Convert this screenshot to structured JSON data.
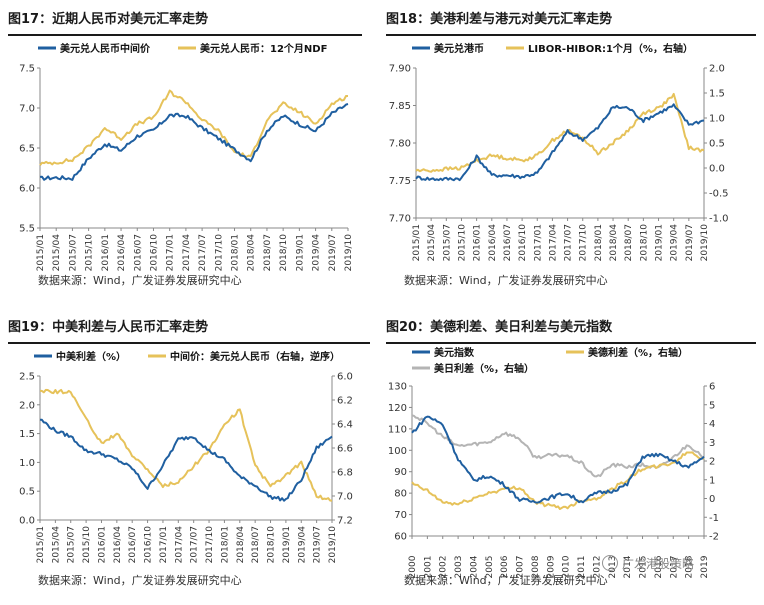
{
  "panels": [
    {
      "title": "图17：近期人民币对美元汇率走势",
      "source": "数据来源：Wind，广发证券发展研究中心"
    },
    {
      "title": "图18：美港利差与港元对美元汇率走势",
      "source": "数据来源：Wind，广发证券发展研究中心"
    },
    {
      "title": "图19：中美利差与人民币汇率走势",
      "source": "数据来源：Wind，广发证券发展研究中心"
    },
    {
      "title": "图20：美德利差、美日利差与美元指数",
      "source": "数据来源：Wind，广发证券发展研究中心"
    }
  ],
  "watermark": "广发港股策略",
  "chart_data": [
    {
      "type": "line",
      "title": "近期人民币对美元汇率走势",
      "categories": [
        "2015/01",
        "2015/04",
        "2015/07",
        "2015/10",
        "2016/01",
        "2016/04",
        "2016/07",
        "2016/10",
        "2017/01",
        "2017/04",
        "2017/07",
        "2017/10",
        "2018/01",
        "2018/04",
        "2018/07",
        "2018/10",
        "2019/01",
        "2019/04",
        "2019/07",
        "2019/10"
      ],
      "ylim": [
        5.5,
        7.5
      ],
      "yticks": [
        "5.5",
        "6.0",
        "6.5",
        "7.0",
        "7.5"
      ],
      "series": [
        {
          "name": "美元兑人民币中间价",
          "color": "#1f5fa0",
          "axis": "left",
          "values": [
            6.12,
            6.13,
            6.12,
            6.37,
            6.55,
            6.47,
            6.65,
            6.72,
            6.91,
            6.9,
            6.75,
            6.62,
            6.48,
            6.35,
            6.72,
            6.9,
            6.8,
            6.71,
            6.93,
            7.05
          ]
        },
        {
          "name": "美元兑人民币：12个月NDF",
          "color": "#e6c25a",
          "axis": "left",
          "values": [
            6.3,
            6.32,
            6.35,
            6.52,
            6.75,
            6.62,
            6.8,
            6.88,
            7.2,
            7.08,
            6.85,
            6.72,
            6.45,
            6.38,
            6.85,
            7.05,
            6.95,
            6.8,
            7.05,
            7.15
          ]
        }
      ]
    },
    {
      "type": "line",
      "title": "美港利差与港元对美元汇率走势",
      "categories": [
        "2015/01",
        "2015/04",
        "2015/07",
        "2015/10",
        "2016/01",
        "2016/04",
        "2016/07",
        "2016/10",
        "2017/01",
        "2017/04",
        "2017/07",
        "2017/10",
        "2018/01",
        "2018/04",
        "2018/07",
        "2018/10",
        "2019/01",
        "2019/04",
        "2019/07",
        "2019/10"
      ],
      "ylim": [
        7.7,
        7.9
      ],
      "yticks": [
        "7.70",
        "7.75",
        "7.80",
        "7.85",
        "7.90"
      ],
      "y2lim": [
        -1.0,
        2.0
      ],
      "y2ticks": [
        "-1.0",
        "-0.5",
        "0.0",
        "0.5",
        "1.0",
        "1.5",
        "2.0"
      ],
      "series": [
        {
          "name": "美元兑港币",
          "color": "#1f5fa0",
          "axis": "left",
          "values": [
            7.754,
            7.752,
            7.752,
            7.753,
            7.782,
            7.757,
            7.757,
            7.755,
            7.76,
            7.787,
            7.815,
            7.805,
            7.82,
            7.848,
            7.847,
            7.83,
            7.84,
            7.85,
            7.825,
            7.83
          ]
        },
        {
          "name": "LIBOR-HIBOR:1个月（%，右轴）",
          "color": "#e6c25a",
          "axis": "right",
          "values": [
            -0.05,
            -0.05,
            -0.02,
            0.0,
            0.15,
            0.25,
            0.2,
            0.15,
            0.25,
            0.55,
            0.75,
            0.6,
            0.3,
            0.5,
            0.75,
            1.1,
            1.2,
            1.45,
            0.4,
            0.35
          ]
        }
      ]
    },
    {
      "type": "line",
      "title": "中美利差与人民币汇率走势",
      "categories": [
        "2015/01",
        "2015/04",
        "2015/07",
        "2015/10",
        "2016/01",
        "2016/04",
        "2016/07",
        "2016/10",
        "2017/01",
        "2017/04",
        "2017/07",
        "2017/10",
        "2018/01",
        "2018/04",
        "2018/07",
        "2018/10",
        "2019/01",
        "2019/04",
        "2019/07",
        "2019/10"
      ],
      "ylim": [
        0.0,
        2.5
      ],
      "yticks": [
        "0.0",
        "0.5",
        "1.0",
        "1.5",
        "2.0",
        "2.5"
      ],
      "y2lim": [
        6.0,
        7.2
      ],
      "y2ticks": [
        "6.0",
        "6.2",
        "6.4",
        "6.6",
        "6.8",
        "7.0",
        "7.2"
      ],
      "y2inverted": true,
      "series": [
        {
          "name": "中美利差（%）",
          "color": "#1f5fa0",
          "axis": "left",
          "values": [
            1.75,
            1.55,
            1.45,
            1.2,
            1.15,
            1.05,
            0.9,
            0.55,
            0.95,
            1.4,
            1.45,
            1.2,
            1.05,
            0.75,
            0.6,
            0.4,
            0.35,
            0.7,
            1.25,
            1.45
          ]
        },
        {
          "name": "中间价：美元兑人民币（右轴，逆序）",
          "color": "#e6c25a",
          "axis": "right",
          "values": [
            6.12,
            6.13,
            6.13,
            6.36,
            6.56,
            6.48,
            6.66,
            6.78,
            6.92,
            6.88,
            6.75,
            6.62,
            6.4,
            6.28,
            6.75,
            6.92,
            6.83,
            6.72,
            7.0,
            7.04
          ]
        }
      ]
    },
    {
      "type": "line",
      "title": "美德利差、美日利差与美元指数",
      "categories": [
        "2000",
        "2001",
        "2002",
        "2003",
        "2004",
        "2005",
        "2006",
        "2007",
        "2008",
        "2009",
        "2010",
        "2011",
        "2012",
        "2013",
        "2014",
        "2015",
        "2016",
        "2017",
        "2018",
        "2019"
      ],
      "ylim": [
        60,
        130
      ],
      "yticks": [
        "60",
        "70",
        "80",
        "90",
        "100",
        "110",
        "120",
        "130"
      ],
      "y2lim": [
        -2,
        6
      ],
      "y2ticks": [
        "-2",
        "-1",
        "0",
        "1",
        "2",
        "3",
        "4",
        "5",
        "6"
      ],
      "series": [
        {
          "name": "美元指数",
          "color": "#1f5fa0",
          "axis": "left",
          "values": [
            108,
            116,
            112,
            96,
            86,
            88,
            84,
            77,
            76,
            78,
            80,
            76,
            80,
            81,
            84,
            97,
            98,
            95,
            92,
            97
          ]
        },
        {
          "name": "美德利差（%，右轴）",
          "color": "#e6c25a",
          "axis": "right",
          "values": [
            0.8,
            0.4,
            -0.2,
            -0.3,
            0.0,
            0.3,
            0.5,
            0.6,
            -0.2,
            -0.4,
            -0.5,
            -0.1,
            0.0,
            0.5,
            1.0,
            1.6,
            1.7,
            1.9,
            2.5,
            2.1
          ]
        },
        {
          "name": "美日利差（%，右轴）",
          "color": "#b4b4b4",
          "axis": "right",
          "values": [
            4.5,
            4.0,
            3.3,
            2.8,
            2.9,
            3.0,
            3.5,
            3.2,
            2.2,
            2.3,
            2.3,
            1.9,
            1.1,
            1.8,
            1.7,
            1.8,
            1.6,
            2.2,
            2.9,
            2.1
          ]
        }
      ]
    }
  ]
}
